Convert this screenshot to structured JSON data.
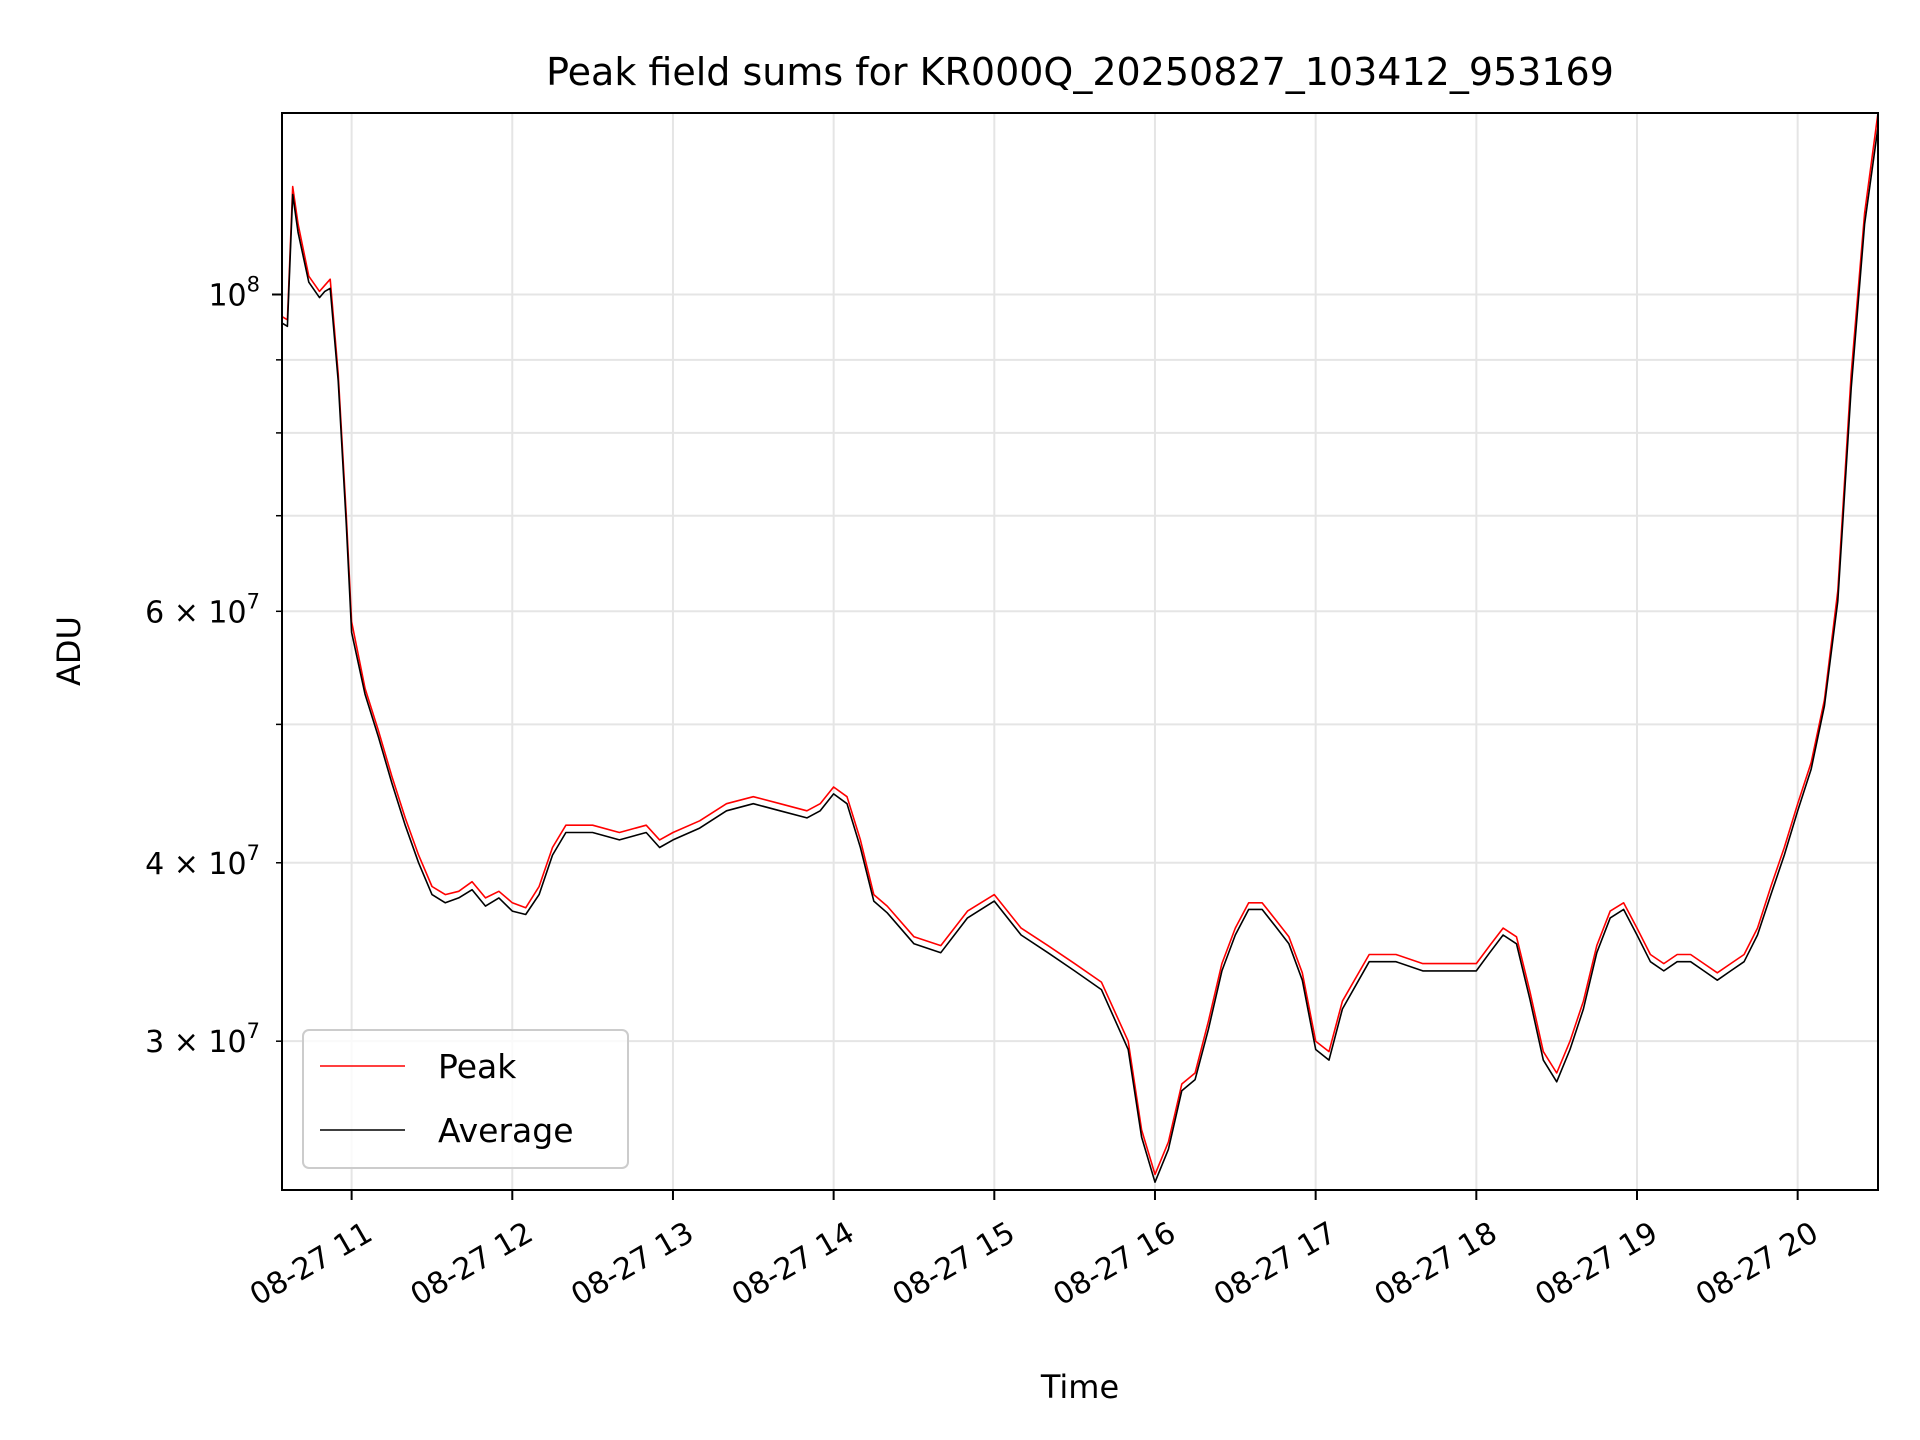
{
  "chart_data": {
    "type": "line",
    "title": "Peak field sums for KR000Q_20250827_103412_953169",
    "xlabel": "Time",
    "ylabel": "ADU",
    "y_scale": "log",
    "xlim": [
      "2025-08-27 10:34",
      "2025-08-27 20:30"
    ],
    "ylim": [
      23600000,
      134000000
    ],
    "grid": true,
    "legend_position": "lower-left",
    "x_ticks": [
      {
        "value": "2025-08-27 11:00",
        "label": "08-27 11"
      },
      {
        "value": "2025-08-27 12:00",
        "label": "08-27 12"
      },
      {
        "value": "2025-08-27 13:00",
        "label": "08-27 13"
      },
      {
        "value": "2025-08-27 14:00",
        "label": "08-27 14"
      },
      {
        "value": "2025-08-27 15:00",
        "label": "08-27 15"
      },
      {
        "value": "2025-08-27 16:00",
        "label": "08-27 16"
      },
      {
        "value": "2025-08-27 17:00",
        "label": "08-27 17"
      },
      {
        "value": "2025-08-27 18:00",
        "label": "08-27 18"
      },
      {
        "value": "2025-08-27 19:00",
        "label": "08-27 19"
      },
      {
        "value": "2025-08-27 20:00",
        "label": "08-27 20"
      }
    ],
    "y_major_ticks": [
      {
        "value": 100000000,
        "base": "10",
        "exp": "8"
      }
    ],
    "y_minor_ticks": [
      {
        "value": 30000000,
        "coef": "3",
        "exp": "7"
      },
      {
        "value": 40000000,
        "coef": "4",
        "exp": "7"
      },
      {
        "value": 50000000
      },
      {
        "value": 60000000,
        "coef": "6",
        "exp": "7"
      },
      {
        "value": 70000000
      },
      {
        "value": 80000000
      },
      {
        "value": 90000000
      }
    ],
    "series": [
      {
        "name": "Peak",
        "color": "#ff0000",
        "x": [
          "2025-08-27 10:34",
          "2025-08-27 10:36",
          "2025-08-27 10:38",
          "2025-08-27 10:40",
          "2025-08-27 10:44",
          "2025-08-27 10:48",
          "2025-08-27 10:50",
          "2025-08-27 10:52",
          "2025-08-27 10:55",
          "2025-08-27 10:58",
          "2025-08-27 11:00",
          "2025-08-27 11:05",
          "2025-08-27 11:10",
          "2025-08-27 11:15",
          "2025-08-27 11:20",
          "2025-08-27 11:25",
          "2025-08-27 11:30",
          "2025-08-27 11:35",
          "2025-08-27 11:40",
          "2025-08-27 11:45",
          "2025-08-27 11:50",
          "2025-08-27 11:55",
          "2025-08-27 12:00",
          "2025-08-27 12:05",
          "2025-08-27 12:10",
          "2025-08-27 12:15",
          "2025-08-27 12:20",
          "2025-08-27 12:30",
          "2025-08-27 12:40",
          "2025-08-27 12:50",
          "2025-08-27 12:55",
          "2025-08-27 13:00",
          "2025-08-27 13:10",
          "2025-08-27 13:20",
          "2025-08-27 13:30",
          "2025-08-27 13:40",
          "2025-08-27 13:50",
          "2025-08-27 13:55",
          "2025-08-27 14:00",
          "2025-08-27 14:05",
          "2025-08-27 14:10",
          "2025-08-27 14:15",
          "2025-08-27 14:20",
          "2025-08-27 14:30",
          "2025-08-27 14:40",
          "2025-08-27 14:50",
          "2025-08-27 15:00",
          "2025-08-27 15:10",
          "2025-08-27 15:20",
          "2025-08-27 15:30",
          "2025-08-27 15:40",
          "2025-08-27 15:50",
          "2025-08-27 15:55",
          "2025-08-27 16:00",
          "2025-08-27 16:05",
          "2025-08-27 16:10",
          "2025-08-27 16:15",
          "2025-08-27 16:20",
          "2025-08-27 16:25",
          "2025-08-27 16:30",
          "2025-08-27 16:35",
          "2025-08-27 16:40",
          "2025-08-27 16:45",
          "2025-08-27 16:50",
          "2025-08-27 16:55",
          "2025-08-27 17:00",
          "2025-08-27 17:05",
          "2025-08-27 17:10",
          "2025-08-27 17:20",
          "2025-08-27 17:30",
          "2025-08-27 17:40",
          "2025-08-27 17:50",
          "2025-08-27 18:00",
          "2025-08-27 18:05",
          "2025-08-27 18:10",
          "2025-08-27 18:15",
          "2025-08-27 18:20",
          "2025-08-27 18:25",
          "2025-08-27 18:30",
          "2025-08-27 18:35",
          "2025-08-27 18:40",
          "2025-08-27 18:45",
          "2025-08-27 18:50",
          "2025-08-27 18:55",
          "2025-08-27 19:00",
          "2025-08-27 19:05",
          "2025-08-27 19:10",
          "2025-08-27 19:15",
          "2025-08-27 19:20",
          "2025-08-27 19:25",
          "2025-08-27 19:30",
          "2025-08-27 19:35",
          "2025-08-27 19:40",
          "2025-08-27 19:45",
          "2025-08-27 19:50",
          "2025-08-27 19:55",
          "2025-08-27 20:00",
          "2025-08-27 20:05",
          "2025-08-27 20:10",
          "2025-08-27 20:15",
          "2025-08-27 20:20",
          "2025-08-27 20:25",
          "2025-08-27 20:30"
        ],
        "y": [
          96500000,
          96000000,
          119000000,
          112000000,
          103000000,
          100500000,
          101500000,
          102500000,
          88000000,
          70000000,
          59000000,
          53000000,
          49500000,
          46000000,
          43000000,
          40500000,
          38500000,
          38000000,
          38200000,
          38800000,
          37800000,
          38200000,
          37500000,
          37200000,
          38500000,
          41000000,
          42500000,
          42500000,
          42000000,
          42500000,
          41500000,
          42000000,
          42800000,
          44000000,
          44500000,
          44000000,
          43500000,
          44000000,
          45200000,
          44500000,
          41500000,
          38000000,
          37300000,
          35500000,
          35000000,
          37000000,
          38000000,
          36000000,
          35000000,
          34000000,
          33000000,
          30000000,
          26000000,
          24200000,
          25500000,
          28000000,
          28500000,
          31000000,
          34000000,
          36000000,
          37500000,
          37500000,
          36500000,
          35500000,
          33500000,
          30000000,
          29500000,
          32000000,
          34500000,
          34500000,
          34000000,
          34000000,
          34000000,
          35000000,
          36000000,
          35500000,
          32500000,
          29500000,
          28500000,
          30000000,
          32000000,
          35000000,
          37000000,
          37500000,
          36000000,
          34500000,
          34000000,
          34500000,
          34500000,
          34000000,
          33500000,
          34000000,
          34500000,
          36000000,
          38500000,
          41000000,
          44000000,
          47000000,
          52000000,
          62000000,
          88000000,
          114000000,
          134000000
        ]
      },
      {
        "name": "Average",
        "color": "#000000",
        "x": [
          "2025-08-27 10:34",
          "2025-08-27 10:36",
          "2025-08-27 10:38",
          "2025-08-27 10:40",
          "2025-08-27 10:44",
          "2025-08-27 10:48",
          "2025-08-27 10:50",
          "2025-08-27 10:52",
          "2025-08-27 10:55",
          "2025-08-27 10:58",
          "2025-08-27 11:00",
          "2025-08-27 11:05",
          "2025-08-27 11:10",
          "2025-08-27 11:15",
          "2025-08-27 11:20",
          "2025-08-27 11:25",
          "2025-08-27 11:30",
          "2025-08-27 11:35",
          "2025-08-27 11:40",
          "2025-08-27 11:45",
          "2025-08-27 11:50",
          "2025-08-27 11:55",
          "2025-08-27 12:00",
          "2025-08-27 12:05",
          "2025-08-27 12:10",
          "2025-08-27 12:15",
          "2025-08-27 12:20",
          "2025-08-27 12:30",
          "2025-08-27 12:40",
          "2025-08-27 12:50",
          "2025-08-27 12:55",
          "2025-08-27 13:00",
          "2025-08-27 13:10",
          "2025-08-27 13:20",
          "2025-08-27 13:30",
          "2025-08-27 13:40",
          "2025-08-27 13:50",
          "2025-08-27 13:55",
          "2025-08-27 14:00",
          "2025-08-27 14:05",
          "2025-08-27 14:10",
          "2025-08-27 14:15",
          "2025-08-27 14:20",
          "2025-08-27 14:30",
          "2025-08-27 14:40",
          "2025-08-27 14:50",
          "2025-08-27 15:00",
          "2025-08-27 15:10",
          "2025-08-27 15:20",
          "2025-08-27 15:30",
          "2025-08-27 15:40",
          "2025-08-27 15:50",
          "2025-08-27 15:55",
          "2025-08-27 16:00",
          "2025-08-27 16:05",
          "2025-08-27 16:10",
          "2025-08-27 16:15",
          "2025-08-27 16:20",
          "2025-08-27 16:25",
          "2025-08-27 16:30",
          "2025-08-27 16:35",
          "2025-08-27 16:40",
          "2025-08-27 16:45",
          "2025-08-27 16:50",
          "2025-08-27 16:55",
          "2025-08-27 17:00",
          "2025-08-27 17:05",
          "2025-08-27 17:10",
          "2025-08-27 17:20",
          "2025-08-27 17:30",
          "2025-08-27 17:40",
          "2025-08-27 17:50",
          "2025-08-27 18:00",
          "2025-08-27 18:05",
          "2025-08-27 18:10",
          "2025-08-27 18:15",
          "2025-08-27 18:20",
          "2025-08-27 18:25",
          "2025-08-27 18:30",
          "2025-08-27 18:35",
          "2025-08-27 18:40",
          "2025-08-27 18:45",
          "2025-08-27 18:50",
          "2025-08-27 18:55",
          "2025-08-27 19:00",
          "2025-08-27 19:05",
          "2025-08-27 19:10",
          "2025-08-27 19:15",
          "2025-08-27 19:20",
          "2025-08-27 19:25",
          "2025-08-27 19:30",
          "2025-08-27 19:35",
          "2025-08-27 19:40",
          "2025-08-27 19:45",
          "2025-08-27 19:50",
          "2025-08-27 19:55",
          "2025-08-27 20:00",
          "2025-08-27 20:05",
          "2025-08-27 20:10",
          "2025-08-27 20:15",
          "2025-08-27 20:20",
          "2025-08-27 20:25",
          "2025-08-27 20:30"
        ],
        "y": [
          95500000,
          95000000,
          117500000,
          110500000,
          102000000,
          99500000,
          100500000,
          101000000,
          87000000,
          69000000,
          58000000,
          52500000,
          49000000,
          45500000,
          42500000,
          40000000,
          38000000,
          37500000,
          37800000,
          38300000,
          37300000,
          37800000,
          37000000,
          36800000,
          38000000,
          40500000,
          42000000,
          42000000,
          41500000,
          42000000,
          41000000,
          41500000,
          42300000,
          43500000,
          44000000,
          43500000,
          43000000,
          43500000,
          44700000,
          44000000,
          41000000,
          37600000,
          36900000,
          35100000,
          34600000,
          36600000,
          37600000,
          35600000,
          34600000,
          33600000,
          32600000,
          29600000,
          25700000,
          23900000,
          25200000,
          27700000,
          28200000,
          30600000,
          33600000,
          35600000,
          37100000,
          37100000,
          36100000,
          35100000,
          33100000,
          29600000,
          29100000,
          31600000,
          34100000,
          34100000,
          33600000,
          33600000,
          33600000,
          34600000,
          35600000,
          35100000,
          32100000,
          29100000,
          28100000,
          29600000,
          31600000,
          34600000,
          36600000,
          37100000,
          35600000,
          34100000,
          33600000,
          34100000,
          34100000,
          33600000,
          33100000,
          33600000,
          34100000,
          35600000,
          38000000,
          40500000,
          43500000,
          46500000,
          51500000,
          61000000,
          86000000,
          112000000,
          131000000
        ]
      }
    ]
  }
}
